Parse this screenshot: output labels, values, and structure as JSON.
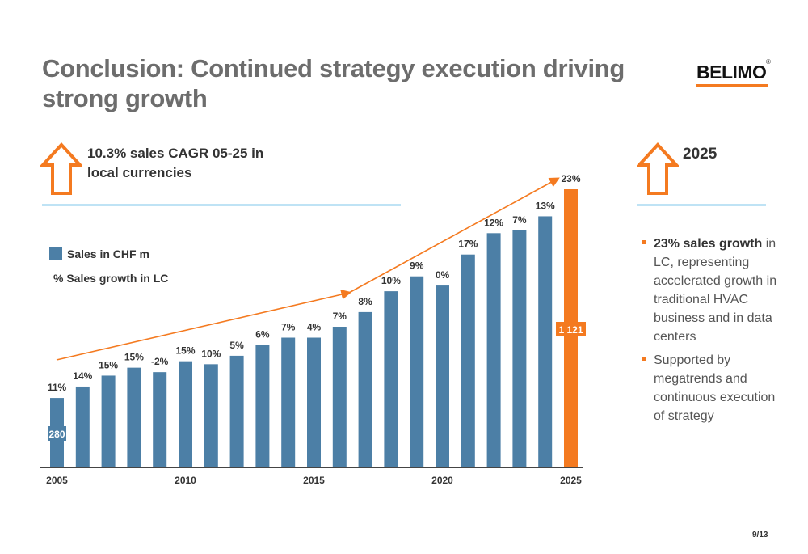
{
  "title": "Conclusion: Continued strategy execution driving strong growth",
  "logo_text": "BELIMO",
  "callout": {
    "line1": "10.3% sales CAGR 05-25 in",
    "line2": "local currencies"
  },
  "right_panel": {
    "year": "2025",
    "bullets": [
      {
        "bold": "23% sales growth",
        "text": " in LC, representing accelerated growth in traditional HVAC business and in data centers"
      },
      {
        "bold": "",
        "text": "Supported by megatrends and continuous execution of strategy"
      }
    ]
  },
  "legend": {
    "sales": "Sales in CHF m",
    "growth": "% Sales growth in LC"
  },
  "page_number": "9/13",
  "colors": {
    "bar": "#4c7fa6",
    "highlight": "#f47a20",
    "rule": "#bfe3f5",
    "title": "#6d6d6d"
  },
  "chart_data": {
    "type": "bar",
    "categories": [
      "2005",
      "2006",
      "2007",
      "2008",
      "2009",
      "2010",
      "2011",
      "2012",
      "2013",
      "2014",
      "2015",
      "2016",
      "2017",
      "2018",
      "2019",
      "2020",
      "2021",
      "2022",
      "2023",
      "2024",
      "2025"
    ],
    "x_tick_labels": [
      "2005",
      "2010",
      "2015",
      "2020",
      "2025"
    ],
    "values": [
      280,
      326,
      370,
      402,
      384,
      428,
      416,
      450,
      494,
      523,
      523,
      567,
      626,
      710,
      770,
      733,
      858,
      944,
      955,
      1012,
      1121
    ],
    "growth_labels": [
      "11%",
      "14%",
      "15%",
      "15%",
      "-2%",
      "15%",
      "10%",
      "5%",
      "6%",
      "7%",
      "4%",
      "7%",
      "8%",
      "10%",
      "9%",
      "0%",
      "17%",
      "12%",
      "7%",
      "13%",
      "23%"
    ],
    "value_labels": {
      "first": "280",
      "last": "1 121"
    },
    "ylim": [
      0,
      1121
    ],
    "grid": false
  }
}
